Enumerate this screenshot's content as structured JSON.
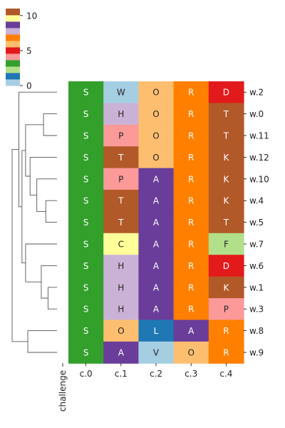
{
  "chart_data": {
    "type": "heatmap",
    "title": "",
    "xlabel": "challenge",
    "ylabel": "",
    "columns": [
      "c.0",
      "c.1",
      "c.2",
      "c.3",
      "c.4"
    ],
    "rows": [
      "w.2",
      "w.0",
      "w.11",
      "w.12",
      "w.10",
      "w.4",
      "w.5",
      "w.7",
      "w.6",
      "w.1",
      "w.3",
      "w.8",
      "w.9"
    ],
    "cells": [
      [
        "S",
        "W",
        "O",
        "R",
        "D"
      ],
      [
        "S",
        "H",
        "O",
        "R",
        "T"
      ],
      [
        "S",
        "P",
        "O",
        "R",
        "T"
      ],
      [
        "S",
        "T",
        "O",
        "R",
        "K"
      ],
      [
        "S",
        "P",
        "A",
        "R",
        "K"
      ],
      [
        "S",
        "T",
        "A",
        "R",
        "K"
      ],
      [
        "S",
        "T",
        "A",
        "R",
        "T"
      ],
      [
        "S",
        "C",
        "A",
        "R",
        "F"
      ],
      [
        "S",
        "H",
        "A",
        "R",
        "D"
      ],
      [
        "S",
        "H",
        "A",
        "R",
        "K"
      ],
      [
        "S",
        "H",
        "A",
        "R",
        "P"
      ],
      [
        "S",
        "O",
        "L",
        "A",
        "R"
      ],
      [
        "S",
        "A",
        "V",
        "O",
        "R"
      ]
    ],
    "letter_values": {
      "A": 9,
      "C": 10,
      "D": 5,
      "F": 2,
      "H": 8,
      "K": 11,
      "L": 1,
      "O": 6,
      "P": 4,
      "R": 7,
      "S": 3,
      "T": 11,
      "V": 0,
      "W": 0
    },
    "colormap": [
      "#a6cee3",
      "#1f78b4",
      "#b2df8a",
      "#33a02c",
      "#fb9a99",
      "#e31a1c",
      "#fdbf6f",
      "#ff7f00",
      "#cab2d6",
      "#6a3d9a",
      "#ffff99",
      "#b15928"
    ],
    "colorbar": {
      "ticks": [
        0,
        5,
        10
      ],
      "range": [
        0,
        11
      ]
    },
    "dendrogram": {
      "side": "left",
      "links": [
        {
          "a": "w.1",
          "b": "w.3",
          "h": 0.2
        },
        {
          "a": "w.4",
          "b": "w.5",
          "h": 0.25
        },
        {
          "a": "w.0",
          "b": "w.11",
          "h": 0.3
        },
        {
          "a": "w.6",
          "b": "L1",
          "h": 0.35,
          "id": "L4"
        },
        {
          "a": "w.10",
          "b": "L2",
          "h": 0.45,
          "id": "L5"
        },
        {
          "a": "w.12",
          "b": "L5",
          "h": 0.6,
          "id": "L6"
        },
        {
          "a": "L3",
          "b": "L6",
          "h": 0.7,
          "id": "L7"
        },
        {
          "a": "w.7",
          "b": "L4",
          "h": 0.7,
          "id": "L8"
        },
        {
          "a": "L7",
          "b": "L8",
          "h": 0.78,
          "id": "L9"
        },
        {
          "a": "w.2",
          "b": "L9",
          "h": 0.85,
          "id": "L10"
        },
        {
          "a": "w.8",
          "b": "w.9",
          "h": 0.65,
          "id": "L11"
        },
        {
          "a": "L10",
          "b": "L11",
          "h": 1.0,
          "id": "L12"
        }
      ]
    }
  }
}
